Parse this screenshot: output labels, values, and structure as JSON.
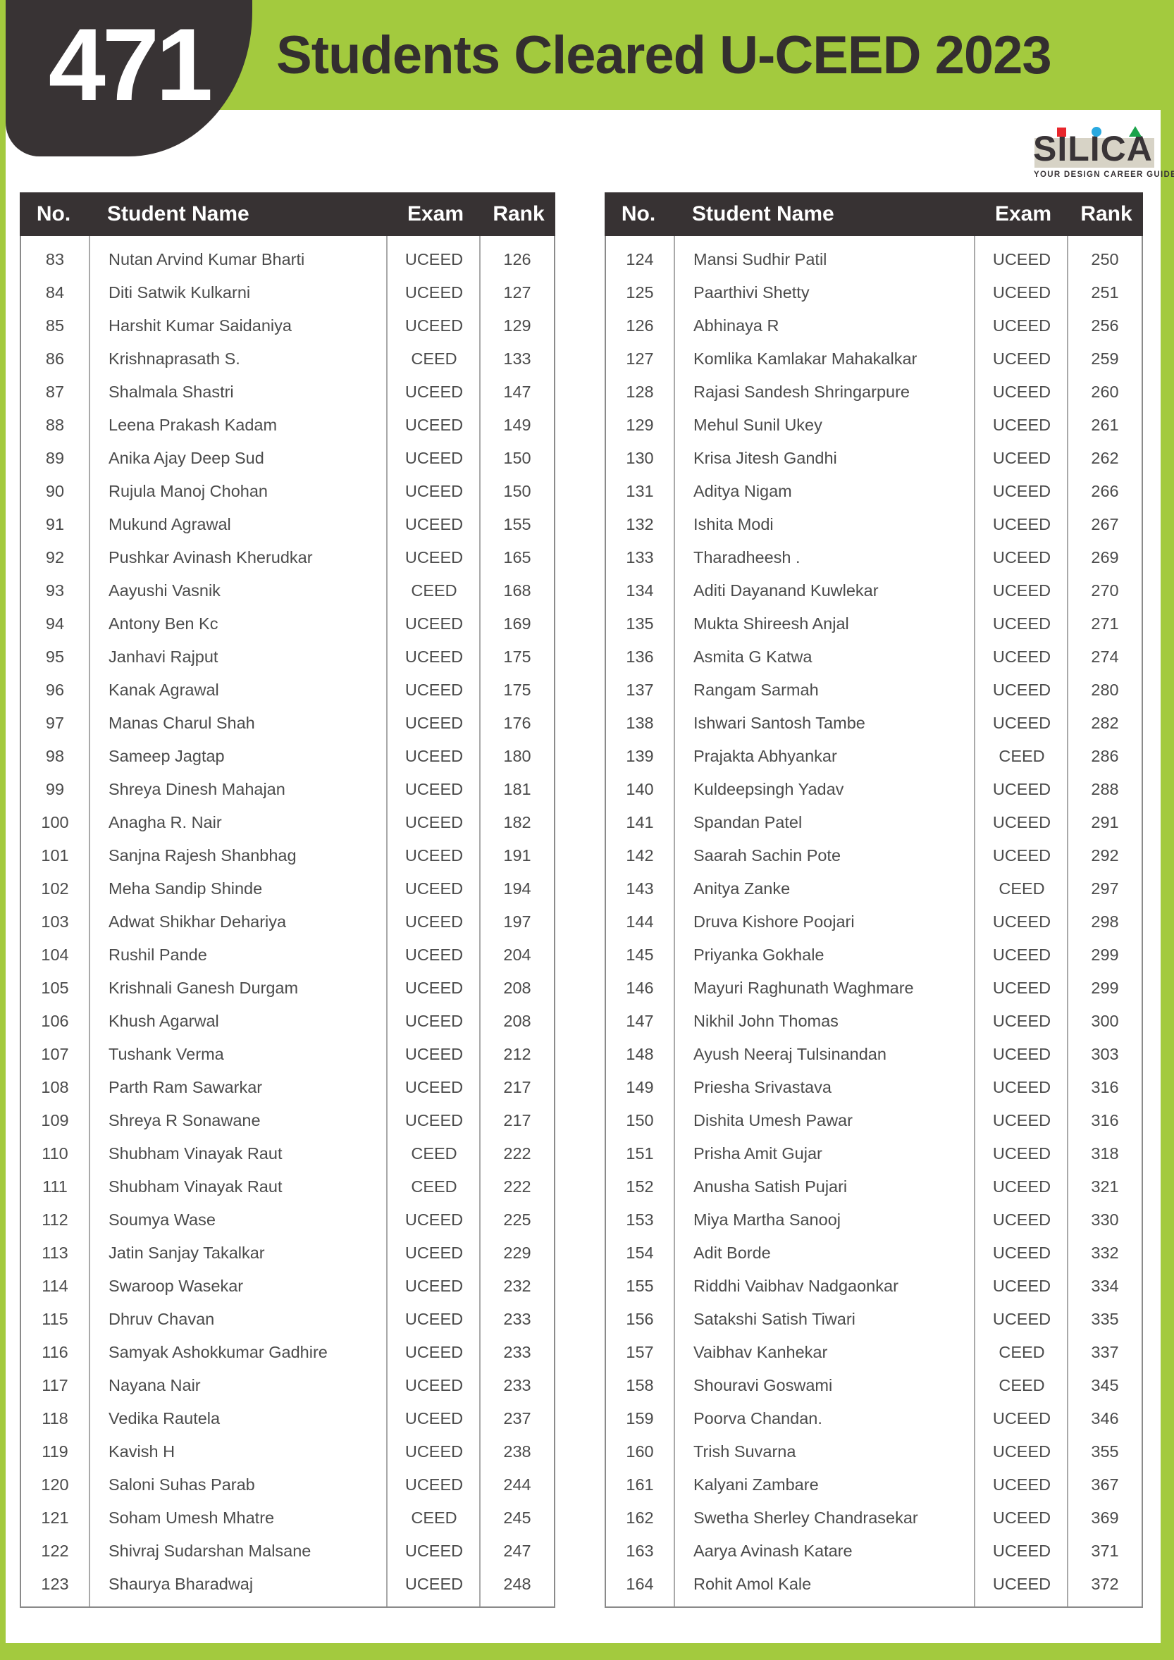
{
  "badge": {
    "count": "471"
  },
  "header": {
    "title": "Students Cleared U-CEED 2023"
  },
  "logo": {
    "brand": "SILICA",
    "tagline": "YOUR DESIGN CAREER GUIDE",
    "colors": {
      "red": "#e8262c",
      "blue": "#29a9e0",
      "green": "#1aa34a",
      "backdrop": "#d7d3c6",
      "text": "#393437"
    }
  },
  "theme": {
    "green": "#a3ca3e",
    "dark": "#383334",
    "row_text": "#4b4b4b",
    "grid_line": "#a9a9a9"
  },
  "columns": {
    "no": "No.",
    "name": "Student Name",
    "exam": "Exam",
    "rank": "Rank"
  },
  "tables": [
    {
      "rows": [
        [
          "83",
          "Nutan Arvind Kumar Bharti",
          "UCEED",
          "126"
        ],
        [
          "84",
          "Diti Satwik Kulkarni",
          "UCEED",
          "127"
        ],
        [
          "85",
          "Harshit Kumar Saidaniya",
          "UCEED",
          "129"
        ],
        [
          "86",
          "Krishnaprasath S.",
          "CEED",
          "133"
        ],
        [
          "87",
          "Shalmala Shastri",
          "UCEED",
          "147"
        ],
        [
          "88",
          "Leena Prakash Kadam",
          "UCEED",
          "149"
        ],
        [
          "89",
          "Anika Ajay Deep Sud",
          "UCEED",
          "150"
        ],
        [
          "90",
          "Rujula Manoj Chohan",
          "UCEED",
          "150"
        ],
        [
          "91",
          "Mukund Agrawal",
          "UCEED",
          "155"
        ],
        [
          "92",
          "Pushkar Avinash Kherudkar",
          "UCEED",
          "165"
        ],
        [
          "93",
          "Aayushi Vasnik",
          "CEED",
          "168"
        ],
        [
          "94",
          "Antony Ben Kc",
          "UCEED",
          "169"
        ],
        [
          "95",
          "Janhavi Rajput",
          "UCEED",
          "175"
        ],
        [
          "96",
          "Kanak Agrawal",
          "UCEED",
          "175"
        ],
        [
          "97",
          "Manas Charul Shah",
          "UCEED",
          "176"
        ],
        [
          "98",
          "Sameep Jagtap",
          "UCEED",
          "180"
        ],
        [
          "99",
          "Shreya Dinesh Mahajan",
          "UCEED",
          "181"
        ],
        [
          "100",
          "Anagha R. Nair",
          "UCEED",
          "182"
        ],
        [
          "101",
          "Sanjna Rajesh Shanbhag",
          "UCEED",
          "191"
        ],
        [
          "102",
          "Meha Sandip Shinde",
          "UCEED",
          "194"
        ],
        [
          "103",
          "Adwat Shikhar Dehariya",
          "UCEED",
          "197"
        ],
        [
          "104",
          "Rushil Pande",
          "UCEED",
          "204"
        ],
        [
          "105",
          "Krishnali Ganesh Durgam",
          "UCEED",
          "208"
        ],
        [
          "106",
          "Khush Agarwal",
          "UCEED",
          "208"
        ],
        [
          "107",
          "Tushank Verma",
          "UCEED",
          "212"
        ],
        [
          "108",
          "Parth Ram Sawarkar",
          "UCEED",
          "217"
        ],
        [
          "109",
          "Shreya R Sonawane",
          "UCEED",
          "217"
        ],
        [
          "110",
          "Shubham Vinayak Raut",
          "CEED",
          "222"
        ],
        [
          "111",
          "Shubham Vinayak Raut",
          "CEED",
          "222"
        ],
        [
          "112",
          "Soumya Wase",
          "UCEED",
          "225"
        ],
        [
          "113",
          "Jatin Sanjay Takalkar",
          "UCEED",
          "229"
        ],
        [
          "114",
          "Swaroop Wasekar",
          "UCEED",
          "232"
        ],
        [
          "115",
          "Dhruv Chavan",
          "UCEED",
          "233"
        ],
        [
          "116",
          "Samyak Ashokkumar Gadhire",
          "UCEED",
          "233"
        ],
        [
          "117",
          "Nayana Nair",
          "UCEED",
          "233"
        ],
        [
          "118",
          "Vedika Rautela",
          "UCEED",
          "237"
        ],
        [
          "119",
          "Kavish H",
          "UCEED",
          "238"
        ],
        [
          "120",
          "Saloni Suhas Parab",
          "UCEED",
          "244"
        ],
        [
          "121",
          "Soham Umesh Mhatre",
          "CEED",
          "245"
        ],
        [
          "122",
          "Shivraj Sudarshan Malsane",
          "UCEED",
          "247"
        ],
        [
          "123",
          "Shaurya Bharadwaj",
          "UCEED",
          "248"
        ]
      ]
    },
    {
      "rows": [
        [
          "124",
          "Mansi Sudhir Patil",
          "UCEED",
          "250"
        ],
        [
          "125",
          "Paarthivi Shetty",
          "UCEED",
          "251"
        ],
        [
          "126",
          "Abhinaya R",
          "UCEED",
          "256"
        ],
        [
          "127",
          "Komlika Kamlakar Mahakalkar",
          "UCEED",
          "259"
        ],
        [
          "128",
          "Rajasi Sandesh Shringarpure",
          "UCEED",
          "260"
        ],
        [
          "129",
          "Mehul Sunil Ukey",
          "UCEED",
          "261"
        ],
        [
          "130",
          "Krisa Jitesh Gandhi",
          "UCEED",
          "262"
        ],
        [
          "131",
          "Aditya Nigam",
          "UCEED",
          "266"
        ],
        [
          "132",
          "Ishita Modi",
          "UCEED",
          "267"
        ],
        [
          "133",
          "Tharadheesh .",
          "UCEED",
          "269"
        ],
        [
          "134",
          "Aditi Dayanand Kuwlekar",
          "UCEED",
          "270"
        ],
        [
          "135",
          "Mukta Shireesh Anjal",
          "UCEED",
          "271"
        ],
        [
          "136",
          "Asmita G Katwa",
          "UCEED",
          "274"
        ],
        [
          "137",
          "Rangam Sarmah",
          "UCEED",
          "280"
        ],
        [
          "138",
          "Ishwari Santosh Tambe",
          "UCEED",
          "282"
        ],
        [
          "139",
          "Prajakta Abhyankar",
          "CEED",
          "286"
        ],
        [
          "140",
          "Kuldeepsingh Yadav",
          "UCEED",
          "288"
        ],
        [
          "141",
          "Spandan Patel",
          "UCEED",
          "291"
        ],
        [
          "142",
          "Saarah Sachin Pote",
          "UCEED",
          "292"
        ],
        [
          "143",
          "Anitya Zanke",
          "CEED",
          "297"
        ],
        [
          "144",
          "Druva Kishore Poojari",
          "UCEED",
          "298"
        ],
        [
          "145",
          "Priyanka Gokhale",
          "UCEED",
          "299"
        ],
        [
          "146",
          "Mayuri Raghunath Waghmare",
          "UCEED",
          "299"
        ],
        [
          "147",
          "Nikhil John Thomas",
          "UCEED",
          "300"
        ],
        [
          "148",
          "Ayush Neeraj Tulsinandan",
          "UCEED",
          "303"
        ],
        [
          "149",
          "Priesha Srivastava",
          "UCEED",
          "316"
        ],
        [
          "150",
          "Dishita Umesh Pawar",
          "UCEED",
          "316"
        ],
        [
          "151",
          "Prisha Amit Gujar",
          "UCEED",
          "318"
        ],
        [
          "152",
          "Anusha Satish Pujari",
          "UCEED",
          "321"
        ],
        [
          "153",
          "Miya Martha Sanooj",
          "UCEED",
          "330"
        ],
        [
          "154",
          "Adit Borde",
          "UCEED",
          "332"
        ],
        [
          "155",
          "Riddhi Vaibhav Nadgaonkar",
          "UCEED",
          "334"
        ],
        [
          "156",
          "Satakshi Satish Tiwari",
          "UCEED",
          "335"
        ],
        [
          "157",
          "Vaibhav Kanhekar",
          "CEED",
          "337"
        ],
        [
          "158",
          "Shouravi Goswami",
          "CEED",
          "345"
        ],
        [
          "159",
          "Poorva Chandan.",
          "UCEED",
          "346"
        ],
        [
          "160",
          "Trish Suvarna",
          "UCEED",
          "355"
        ],
        [
          "161",
          "Kalyani Zambare",
          "UCEED",
          "367"
        ],
        [
          "162",
          "Swetha Sherley Chandrasekar",
          "UCEED",
          "369"
        ],
        [
          "163",
          "Aarya Avinash Katare",
          "UCEED",
          "371"
        ],
        [
          "164",
          "Rohit Amol Kale",
          "UCEED",
          "372"
        ]
      ]
    }
  ]
}
